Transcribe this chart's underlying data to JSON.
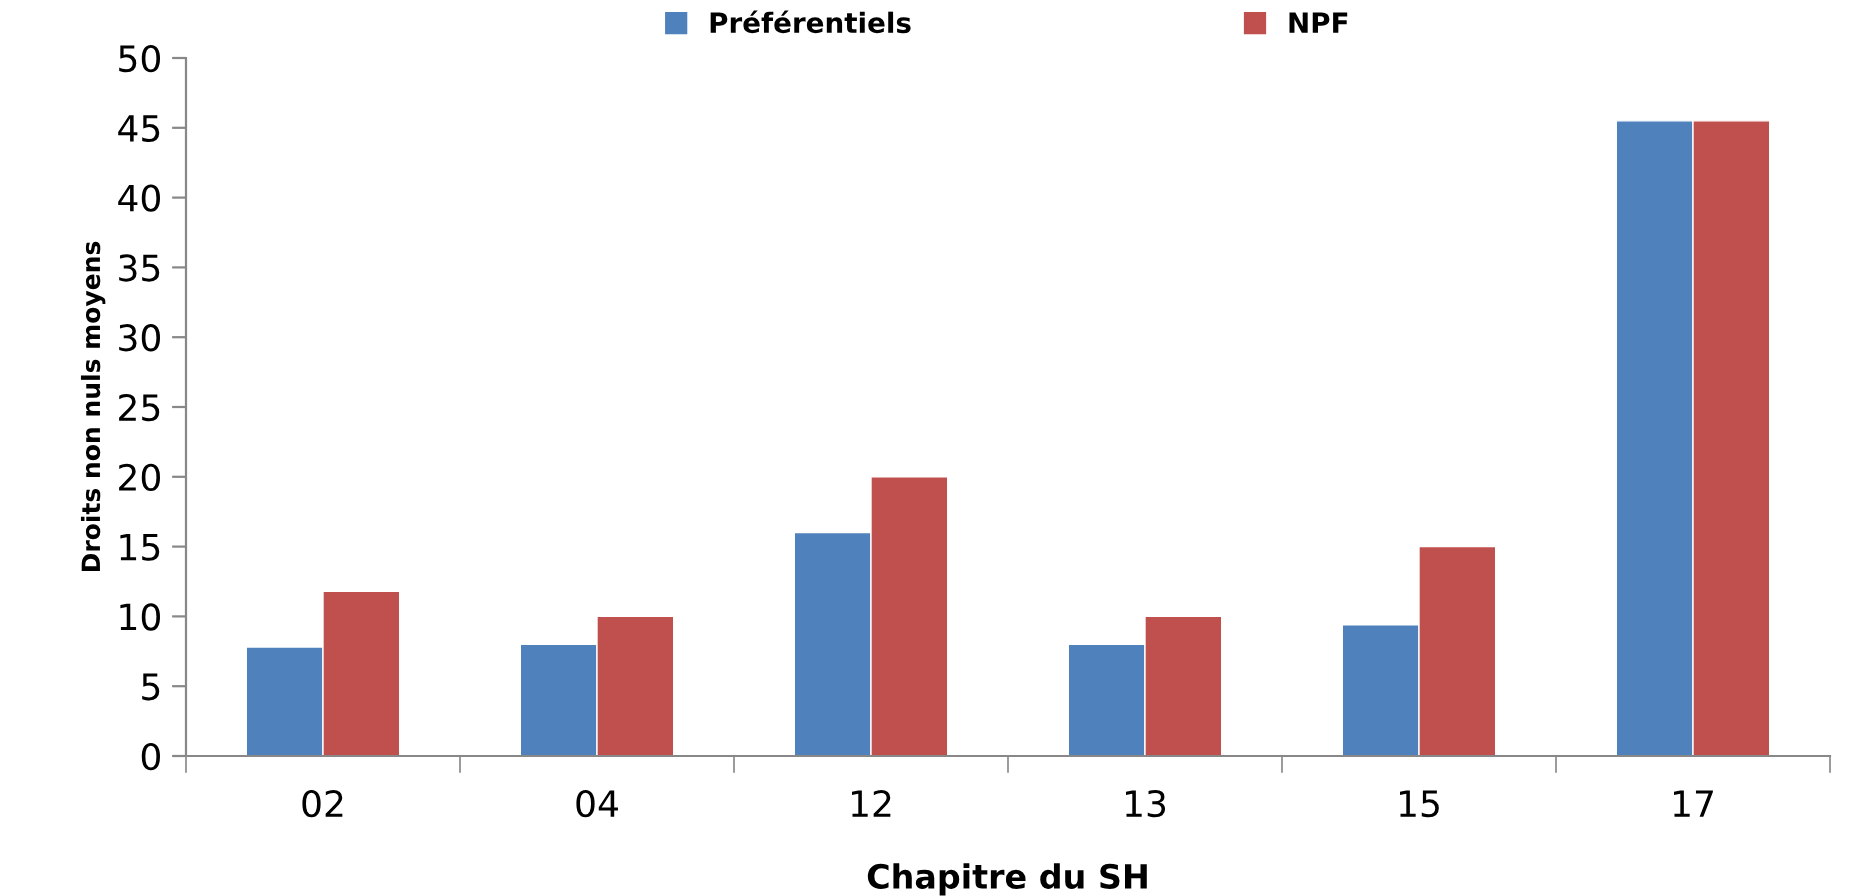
{
  "chart_data": {
    "type": "bar",
    "xlabel": "Chapitre du SH",
    "ylabel": "Droits non nuls moyens",
    "categories": [
      "02",
      "04",
      "12",
      "13",
      "15",
      "17"
    ],
    "series": [
      {
        "name": "Préférentiels",
        "color": "#4f81bd",
        "values": [
          7.8,
          8,
          16,
          8,
          9.4,
          45.5
        ]
      },
      {
        "name": "NPF",
        "color": "#c0504d",
        "values": [
          11.8,
          10,
          20,
          10,
          15,
          45.5
        ]
      }
    ],
    "ylim": [
      0,
      50
    ],
    "yticks": [
      0,
      5,
      10,
      15,
      20,
      25,
      30,
      35,
      40,
      45,
      50
    ],
    "grid": false,
    "legend": "top"
  }
}
